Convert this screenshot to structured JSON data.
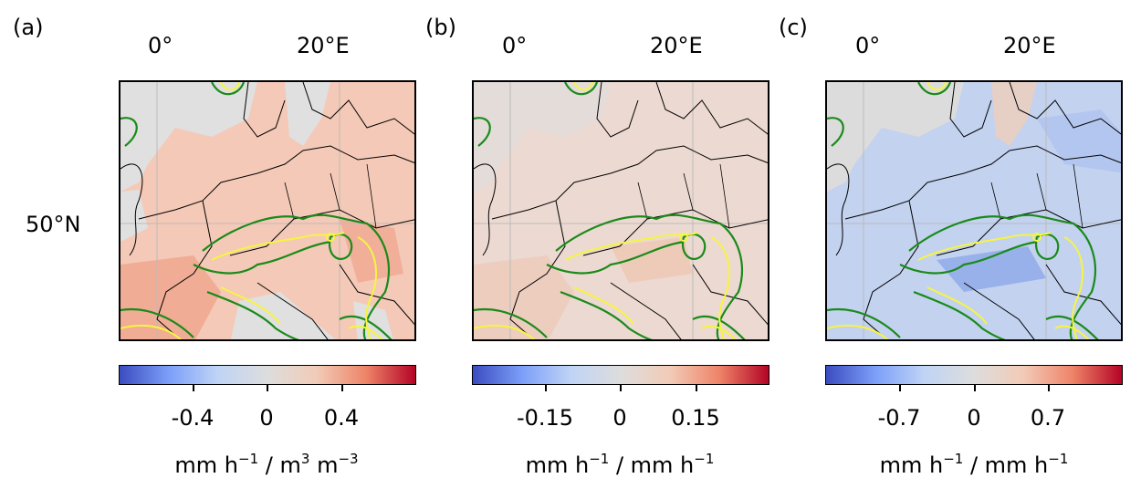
{
  "panels": [
    {
      "label": "(a)",
      "lon_labels": [
        "0°",
        "20°E"
      ],
      "lat_label": "50°N",
      "background_color": "#f4c9b7",
      "colorbar": {
        "ticks": [
          "-0.4",
          "0",
          "0.4"
        ],
        "range": [
          -0.8,
          0.8
        ],
        "unit_main": "mm h",
        "unit_exp1": "−1",
        "unit_mid": " / m",
        "unit_exp2": "3",
        "unit_tail": " m",
        "unit_exp3": "−3"
      }
    },
    {
      "label": "(b)",
      "lon_labels": [
        "0°",
        "20°E"
      ],
      "background_color": "#ecd9d1",
      "colorbar": {
        "ticks": [
          "-0.15",
          "0",
          "0.15"
        ],
        "range": [
          -0.3,
          0.3
        ],
        "unit_main": "mm h",
        "unit_exp1": "−1",
        "unit_mid": " / mm h",
        "unit_exp2": "−1"
      }
    },
    {
      "label": "(c)",
      "lon_labels": [
        "0°",
        "20°E"
      ],
      "background_color": "#c3d2ef",
      "colorbar": {
        "ticks": [
          "-0.7",
          "0",
          "0.7"
        ],
        "range": [
          -1.4,
          1.4
        ],
        "unit_main": "mm h",
        "unit_exp1": "−1",
        "unit_mid": " / mm h",
        "unit_exp2": "−1"
      }
    }
  ],
  "colormap": "coolwarm",
  "colors": {
    "contour_green": "#1a8a1a",
    "contour_yellow": "#f5f542",
    "border": "#000000",
    "grid": "#bbbbbb"
  }
}
